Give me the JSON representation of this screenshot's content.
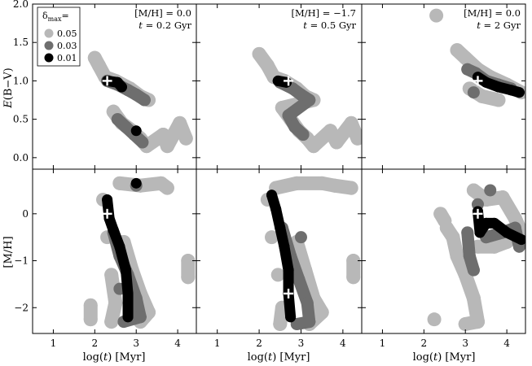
{
  "chart_data": {
    "type": "scatter",
    "layout": {
      "rows": 2,
      "cols": 3
    },
    "colors": {
      "0.05": "#b8b8b8",
      "0.03": "#6e6e6e",
      "0.01": "#000000",
      "marker": "#ffffff"
    },
    "legend": {
      "title_main": "δ",
      "title_sub": "max",
      "title_suffix": "=",
      "entries": [
        {
          "label": "0.05",
          "level": "0.05"
        },
        {
          "label": "0.03",
          "level": "0.03"
        },
        {
          "label": "0.01",
          "level": "0.01"
        }
      ],
      "placement": "top-left of first panel"
    },
    "xlabel": "log(t) [Myr]",
    "xlabel_parts": [
      "log(",
      "t",
      ") [Myr]"
    ],
    "xlim": [
      0.5,
      4.45
    ],
    "xticks": [
      1,
      2,
      3,
      4
    ],
    "ylabel_top": "E(B−V)",
    "ylabel_top_parts": [
      "E",
      "(B−V)"
    ],
    "ylim_top": [
      -0.15,
      2.0
    ],
    "yticks_top": [
      0.0,
      0.5,
      1.0,
      1.5,
      2.0
    ],
    "yticklabels_top": [
      "0.0",
      "0.5",
      "1.0",
      "1.5",
      "2.0"
    ],
    "ylabel_bottom": "[M/H]",
    "ylim_bottom": [
      -2.55,
      0.95
    ],
    "yticks_bottom": [
      -2,
      -1,
      0
    ],
    "yticklabels_bottom": [
      "−2",
      "−1",
      "0"
    ],
    "columns": [
      {
        "mh_label": "[M/H] = 0.0",
        "t_parts": [
          "t",
          " = 0.2 Gyr"
        ],
        "marker": {
          "logt": 2.3,
          "ebv": 1.0,
          "mh": 0.0
        },
        "top": {
          "light": [
            [
              2.0,
              1.3
            ],
            [
              2.1,
              1.2
            ],
            [
              2.25,
              1.05
            ],
            [
              2.5,
              1.0
            ],
            [
              2.85,
              0.9
            ],
            [
              3.1,
              0.8
            ],
            [
              3.3,
              0.75
            ],
            [
              2.45,
              0.6
            ],
            [
              2.65,
              0.45
            ],
            [
              2.9,
              0.35
            ],
            [
              3.1,
              0.25
            ],
            [
              3.25,
              0.15
            ],
            [
              3.65,
              0.3
            ],
            [
              3.75,
              0.15
            ],
            [
              4.05,
              0.45
            ],
            [
              4.2,
              0.25
            ]
          ],
          "mid": [
            [
              2.3,
              1.0
            ],
            [
              2.55,
              0.95
            ],
            [
              2.8,
              0.88
            ],
            [
              3.0,
              0.82
            ],
            [
              3.2,
              0.75
            ],
            [
              2.55,
              0.5
            ],
            [
              2.75,
              0.4
            ],
            [
              2.95,
              0.3
            ],
            [
              3.15,
              0.2
            ]
          ],
          "dark": [
            [
              2.3,
              1.0
            ],
            [
              2.55,
              0.98
            ],
            [
              2.65,
              0.92
            ],
            [
              3.0,
              0.35
            ]
          ]
        },
        "bottom": {
          "light": [
            [
              2.2,
              0.3
            ],
            [
              2.3,
              -0.5
            ],
            [
              2.4,
              -1.3
            ],
            [
              2.5,
              -1.9
            ],
            [
              2.4,
              -2.3
            ],
            [
              2.7,
              -0.6
            ],
            [
              2.9,
              -1.2
            ],
            [
              3.1,
              -1.7
            ],
            [
              3.3,
              -2.1
            ],
            [
              3.1,
              -2.3
            ],
            [
              2.6,
              0.65
            ],
            [
              3.1,
              0.6
            ],
            [
              3.6,
              0.65
            ],
            [
              3.75,
              0.55
            ],
            [
              4.25,
              -1.0
            ],
            [
              4.25,
              -1.35
            ],
            [
              1.9,
              -1.95
            ],
            [
              1.9,
              -2.25
            ]
          ],
          "mid": [
            [
              2.45,
              -0.4
            ],
            [
              2.6,
              -0.9
            ],
            [
              2.8,
              -1.3
            ],
            [
              3.0,
              -1.8
            ],
            [
              3.1,
              -2.2
            ],
            [
              2.7,
              -2.3
            ],
            [
              2.6,
              -1.6
            ],
            [
              3.0,
              0.6
            ]
          ],
          "dark": [
            [
              2.3,
              0.3
            ],
            [
              2.35,
              -0.1
            ],
            [
              2.45,
              -0.35
            ],
            [
              2.6,
              -0.7
            ],
            [
              2.75,
              -1.2
            ],
            [
              2.8,
              -1.7
            ],
            [
              2.8,
              -2.2
            ],
            [
              3.0,
              0.65
            ]
          ]
        }
      },
      {
        "mh_label": "[M/H] = −1.7",
        "t_parts": [
          "t",
          " = 0.5 Gyr"
        ],
        "marker": {
          "logt": 2.7,
          "ebv": 1.0,
          "mh": -1.7
        },
        "top": {
          "light": [
            [
              2.0,
              1.35
            ],
            [
              2.2,
              1.2
            ],
            [
              2.35,
              1.05
            ],
            [
              2.6,
              1.0
            ],
            [
              2.9,
              0.9
            ],
            [
              3.1,
              0.8
            ],
            [
              3.3,
              0.75
            ],
            [
              2.55,
              0.65
            ],
            [
              2.75,
              0.5
            ],
            [
              2.95,
              0.35
            ],
            [
              3.15,
              0.25
            ],
            [
              3.3,
              0.15
            ],
            [
              3.7,
              0.35
            ],
            [
              3.85,
              0.2
            ],
            [
              4.2,
              0.45
            ],
            [
              4.35,
              0.25
            ]
          ],
          "mid": [
            [
              2.5,
              0.98
            ],
            [
              2.8,
              0.9
            ],
            [
              3.0,
              0.82
            ],
            [
              3.2,
              0.75
            ],
            [
              2.7,
              0.55
            ],
            [
              2.85,
              0.4
            ],
            [
              3.05,
              0.3
            ]
          ],
          "dark": [
            [
              2.45,
              1.0
            ],
            [
              2.65,
              0.98
            ]
          ]
        },
        "bottom": {
          "light": [
            [
              2.2,
              0.3
            ],
            [
              2.3,
              -0.5
            ],
            [
              2.45,
              -1.3
            ],
            [
              2.55,
              -2.0
            ],
            [
              2.5,
              -2.35
            ],
            [
              2.9,
              -0.6
            ],
            [
              3.1,
              -1.2
            ],
            [
              3.3,
              -1.8
            ],
            [
              3.5,
              -2.1
            ],
            [
              3.2,
              -2.35
            ],
            [
              2.4,
              0.55
            ],
            [
              2.9,
              0.65
            ],
            [
              3.5,
              0.65
            ],
            [
              3.8,
              0.6
            ],
            [
              4.2,
              0.55
            ],
            [
              4.25,
              -1.0
            ],
            [
              4.25,
              -1.35
            ]
          ],
          "mid": [
            [
              2.55,
              -0.3
            ],
            [
              2.75,
              -0.9
            ],
            [
              2.95,
              -1.4
            ],
            [
              3.15,
              -1.9
            ],
            [
              3.2,
              -2.3
            ],
            [
              2.9,
              -2.35
            ],
            [
              3.0,
              -0.5
            ]
          ],
          "dark": [
            [
              2.3,
              0.4
            ],
            [
              2.4,
              0.1
            ],
            [
              2.5,
              -0.3
            ],
            [
              2.6,
              -0.7
            ],
            [
              2.7,
              -1.2
            ],
            [
              2.7,
              -1.7
            ],
            [
              2.75,
              -2.2
            ]
          ]
        }
      },
      {
        "mh_label": "[M/H] = 0.0",
        "t_parts": [
          "t",
          " = 2 Gyr"
        ],
        "marker": {
          "logt": 3.3,
          "ebv": 1.0,
          "mh": 0.0
        },
        "top": {
          "light": [
            [
              2.3,
              1.85
            ],
            [
              2.8,
              1.4
            ],
            [
              3.0,
              1.3
            ],
            [
              3.3,
              1.15
            ],
            [
              3.6,
              1.05
            ],
            [
              4.0,
              0.95
            ],
            [
              4.35,
              0.85
            ],
            [
              3.1,
              0.9
            ],
            [
              3.4,
              0.8
            ],
            [
              3.8,
              0.75
            ]
          ],
          "mid": [
            [
              3.05,
              1.15
            ],
            [
              3.25,
              1.1
            ],
            [
              3.5,
              1.0
            ],
            [
              3.8,
              0.95
            ],
            [
              4.1,
              0.9
            ],
            [
              3.2,
              0.85
            ]
          ],
          "dark": [
            [
              3.3,
              1.05
            ],
            [
              3.5,
              0.98
            ],
            [
              3.8,
              0.92
            ],
            [
              4.1,
              0.88
            ],
            [
              4.3,
              0.85
            ]
          ]
        },
        "bottom": {
          "light": [
            [
              2.55,
              -0.3
            ],
            [
              2.7,
              -0.5
            ],
            [
              2.8,
              -0.9
            ],
            [
              3.0,
              -1.3
            ],
            [
              3.2,
              -1.8
            ],
            [
              3.3,
              -2.3
            ],
            [
              3.0,
              -2.35
            ],
            [
              3.3,
              -0.7
            ],
            [
              3.7,
              -0.7
            ],
            [
              4.0,
              -0.6
            ],
            [
              4.3,
              -0.3
            ],
            [
              3.2,
              0.5
            ],
            [
              3.5,
              0.3
            ],
            [
              3.9,
              0.35
            ],
            [
              4.2,
              -0.1
            ],
            [
              4.4,
              -0.5
            ],
            [
              2.4,
              0.0
            ],
            [
              2.5,
              -0.15
            ],
            [
              2.25,
              -2.25
            ]
          ],
          "mid": [
            [
              3.05,
              -0.4
            ],
            [
              3.1,
              -0.9
            ],
            [
              3.2,
              -1.2
            ],
            [
              3.3,
              0.2
            ],
            [
              3.5,
              -0.5
            ],
            [
              3.9,
              -0.4
            ],
            [
              4.2,
              -0.3
            ],
            [
              4.3,
              -0.7
            ],
            [
              3.6,
              0.5
            ]
          ],
          "dark": [
            [
              3.3,
              0.05
            ],
            [
              3.35,
              -0.4
            ],
            [
              3.5,
              -0.2
            ],
            [
              3.7,
              -0.2
            ],
            [
              4.0,
              -0.4
            ],
            [
              4.35,
              -0.55
            ]
          ]
        }
      }
    ]
  }
}
